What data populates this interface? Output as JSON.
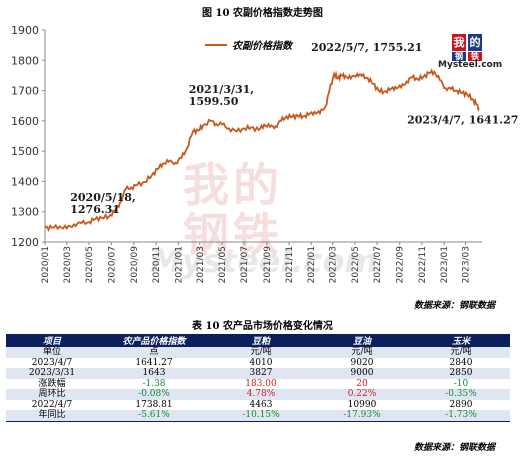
{
  "figure_title": "图 10 农副价格指数走势图",
  "logo": {
    "chars": [
      "我",
      "的",
      "钢",
      "铁"
    ],
    "brand": "Mysteel.com"
  },
  "watermark": {
    "chars": [
      "我",
      "的",
      "钢",
      "铁"
    ],
    "brand": "Mysteel.com"
  },
  "source_note": "数据来源：钢联数据",
  "chart_data": {
    "type": "line",
    "series": [
      {
        "name": "农副价格指数",
        "color": "#c65a1e",
        "points": [
          [
            "2020-01-01",
            1248
          ],
          [
            "2020-01-20",
            1247
          ],
          [
            "2020-02-10",
            1252
          ],
          [
            "2020-03-01",
            1245
          ],
          [
            "2020-03-20",
            1258
          ],
          [
            "2020-04-10",
            1262
          ],
          [
            "2020-05-01",
            1266
          ],
          [
            "2020-05-18",
            1276.31
          ],
          [
            "2020-06-05",
            1280
          ],
          [
            "2020-06-25",
            1285
          ],
          [
            "2020-07-10",
            1300
          ],
          [
            "2020-07-25",
            1330
          ],
          [
            "2020-08-10",
            1375
          ],
          [
            "2020-08-25",
            1380
          ],
          [
            "2020-09-10",
            1388
          ],
          [
            "2020-10-01",
            1398
          ],
          [
            "2020-10-20",
            1420
          ],
          [
            "2020-11-05",
            1440
          ],
          [
            "2020-11-20",
            1460
          ],
          [
            "2020-12-05",
            1465
          ],
          [
            "2020-12-25",
            1462
          ],
          [
            "2021-01-10",
            1478
          ],
          [
            "2021-01-25",
            1510
          ],
          [
            "2021-02-10",
            1565
          ],
          [
            "2021-02-25",
            1568
          ],
          [
            "2021-03-10",
            1585
          ],
          [
            "2021-03-31",
            1599.5
          ],
          [
            "2021-04-15",
            1590
          ],
          [
            "2021-05-01",
            1588
          ],
          [
            "2021-05-20",
            1575
          ],
          [
            "2021-06-10",
            1565
          ],
          [
            "2021-07-01",
            1575
          ],
          [
            "2021-07-20",
            1578
          ],
          [
            "2021-08-10",
            1570
          ],
          [
            "2021-08-25",
            1588
          ],
          [
            "2021-09-10",
            1580
          ],
          [
            "2021-09-25",
            1582
          ],
          [
            "2021-10-10",
            1600
          ],
          [
            "2021-10-25",
            1615
          ],
          [
            "2021-11-10",
            1613
          ],
          [
            "2021-11-25",
            1617
          ],
          [
            "2021-12-10",
            1615
          ],
          [
            "2021-12-25",
            1620
          ],
          [
            "2022-01-10",
            1630
          ],
          [
            "2022-01-25",
            1625
          ],
          [
            "2022-02-10",
            1650
          ],
          [
            "2022-02-20",
            1700
          ],
          [
            "2022-03-05",
            1755
          ],
          [
            "2022-03-15",
            1740
          ],
          [
            "2022-03-25",
            1750
          ],
          [
            "2022-04-05",
            1748
          ],
          [
            "2022-04-20",
            1740
          ],
          [
            "2022-05-07",
            1755.21
          ],
          [
            "2022-05-20",
            1748
          ],
          [
            "2022-06-05",
            1742
          ],
          [
            "2022-06-20",
            1722
          ],
          [
            "2022-07-05",
            1700
          ],
          [
            "2022-07-20",
            1696
          ],
          [
            "2022-08-05",
            1702
          ],
          [
            "2022-08-20",
            1712
          ],
          [
            "2022-09-05",
            1710
          ],
          [
            "2022-09-20",
            1730
          ],
          [
            "2022-10-05",
            1744
          ],
          [
            "2022-10-20",
            1738
          ],
          [
            "2022-11-05",
            1745
          ],
          [
            "2022-11-20",
            1758
          ],
          [
            "2022-12-05",
            1762
          ],
          [
            "2022-12-20",
            1735
          ],
          [
            "2023-01-05",
            1708
          ],
          [
            "2023-01-20",
            1705
          ],
          [
            "2023-02-05",
            1700
          ],
          [
            "2023-02-20",
            1692
          ],
          [
            "2023-03-05",
            1688
          ],
          [
            "2023-03-20",
            1672
          ],
          [
            "2023-03-30",
            1655
          ],
          [
            "2023-04-07",
            1641.27
          ]
        ]
      }
    ],
    "ylim": [
      1200,
      1900
    ],
    "yticks": [
      1200,
      1300,
      1400,
      1500,
      1600,
      1700,
      1800,
      1900
    ],
    "xticks": [
      "2020-01",
      "2020-03",
      "2020-05",
      "2020-07",
      "2020-09",
      "2020-11",
      "2021-01",
      "2021-03",
      "2021-05",
      "2021-07",
      "2021-09",
      "2021-11",
      "2022-01",
      "2022-03",
      "2022-05",
      "2022-07",
      "2022-09",
      "2022-11",
      "2023-01",
      "2023-03"
    ],
    "xticklabels": [
      "2020/01",
      "2020/03",
      "2020/05",
      "2020/07",
      "2020/09",
      "2020/11",
      "2021/01",
      "2021/03",
      "2021/05",
      "2021/07",
      "2021/09",
      "2021/11",
      "2022/01",
      "2022/03",
      "2022/05",
      "2022/07",
      "2022/09",
      "2022/11",
      "2023/01",
      "2023/03"
    ],
    "legend": "top-center",
    "grid": false,
    "annotations": [
      {
        "lines": [
          "2020/5/18,",
          "1276.31"
        ],
        "x": "2020-05-18",
        "y": 1276.31
      },
      {
        "lines": [
          "2021/3/31,",
          "1599.50"
        ],
        "x": "2021-03-31",
        "y": 1599.5
      },
      {
        "lines": [
          "2022/5/7, 1755.21"
        ],
        "x": "2022-05-07",
        "y": 1755.21
      },
      {
        "lines": [
          "2023/4/7, 1641.27"
        ],
        "x": "2023-04-07",
        "y": 1641.27
      }
    ]
  },
  "table": {
    "title": "表 10 农产品市场价格变化情况",
    "headers": [
      "项目",
      "农产品价格指数",
      "豆粕",
      "豆油",
      "玉米"
    ],
    "rows": [
      {
        "cells": [
          "单位",
          "点",
          "元/吨",
          "元/吨",
          "元/吨"
        ],
        "kinds": [
          "",
          "",
          "",
          "",
          ""
        ]
      },
      {
        "cells": [
          "2023/4/7",
          "1641.27",
          "4010",
          "9020",
          "2840"
        ],
        "kinds": [
          "",
          "",
          "",
          "",
          ""
        ]
      },
      {
        "cells": [
          "2023/3/31",
          "1643",
          "3827",
          "9000",
          "2850"
        ],
        "kinds": [
          "",
          "",
          "",
          "",
          ""
        ]
      },
      {
        "cells": [
          "涨跌幅",
          "-1.38",
          "183.00",
          "20",
          "-10"
        ],
        "kinds": [
          "",
          "neg",
          "pos",
          "pos",
          "neg"
        ]
      },
      {
        "cells": [
          "周环比",
          "-0.08%",
          "4.78%",
          "0.22%",
          "-0.35%"
        ],
        "kinds": [
          "",
          "neg",
          "pos",
          "pos",
          "neg"
        ]
      },
      {
        "cells": [
          "2022/4/7",
          "1738.81",
          "4463",
          "10990",
          "2890"
        ],
        "kinds": [
          "",
          "",
          "",
          "",
          ""
        ]
      },
      {
        "cells": [
          "年同比",
          "-5.61%",
          "-10.15%",
          "-17.93%",
          "-1.73%"
        ],
        "kinds": [
          "",
          "neg",
          "neg",
          "neg",
          "neg"
        ]
      }
    ],
    "source_note": "数据来源：钢联数据"
  },
  "colors": {
    "line": "#c65a1e",
    "header_bg": "#0a1f5c",
    "neg": "#118a2e",
    "pos": "#d21f1f"
  }
}
